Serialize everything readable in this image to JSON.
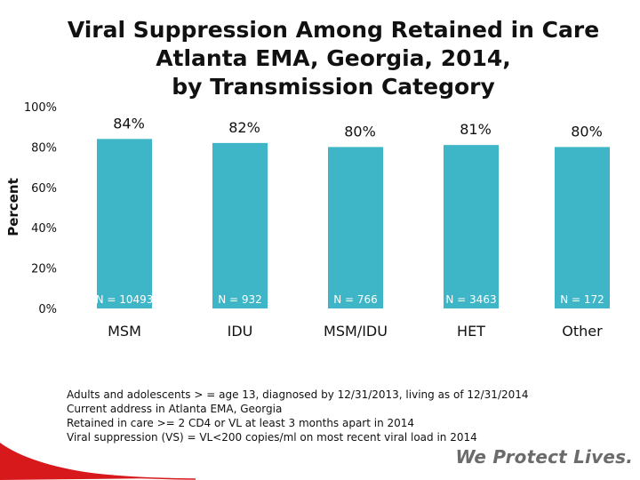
{
  "colors": {
    "bar": "#3fb6c8",
    "accent": "#d7191c"
  },
  "chart_data": {
    "type": "bar",
    "title_lines": [
      "Viral Suppression Among Retained in Care",
      "Atlanta EMA, Georgia, 2014,",
      "by Transmission Category"
    ],
    "ylabel": "Percent",
    "ylim": [
      0,
      100
    ],
    "yticks": [
      "0%",
      "20%",
      "40%",
      "60%",
      "80%",
      "100%"
    ],
    "ytick_values": [
      0,
      20,
      40,
      60,
      80,
      100
    ],
    "categories": [
      "MSM",
      "IDU",
      "MSM/IDU",
      "HET",
      "Other"
    ],
    "values": [
      84,
      82,
      80,
      81,
      80
    ],
    "value_labels": [
      "84%",
      "82%",
      "80%",
      "81%",
      "80%"
    ],
    "n_labels": [
      "N = 10493",
      "N = 932",
      "N = 766",
      "N = 3463",
      "N = 172"
    ]
  },
  "footnotes": [
    "Adults and adolescents > = age 13, diagnosed by 12/31/2013, living as of 12/31/2014",
    "Current address in Atlanta EMA, Georgia",
    "Retained in care >= 2 CD4 or VL at least 3 months apart in 2014",
    "Viral suppression (VS) = VL<200 copies/ml on most recent viral load in 2014"
  ],
  "tagline": "We Protect Lives."
}
